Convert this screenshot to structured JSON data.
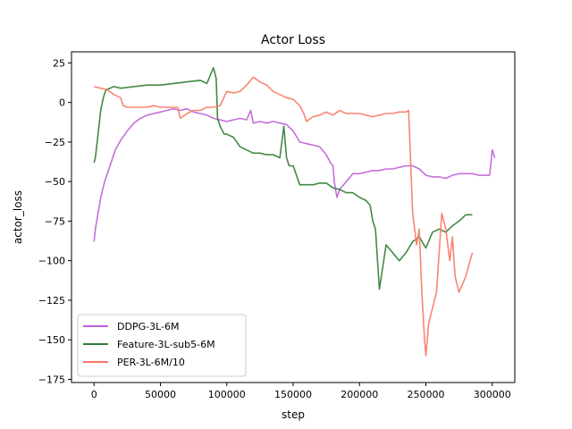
{
  "chart_data": {
    "type": "line",
    "title": "Actor Loss",
    "xlabel": "step",
    "ylabel": "actor_loss",
    "xlim": [
      -17000,
      317000
    ],
    "ylim": [
      -177,
      32
    ],
    "xticks": [
      0,
      50000,
      100000,
      150000,
      200000,
      250000,
      300000
    ],
    "xtick_labels": [
      "0",
      "50000",
      "100000",
      "150000",
      "200000",
      "250000",
      "300000"
    ],
    "yticks": [
      25,
      0,
      -25,
      -50,
      -75,
      -100,
      -125,
      -150,
      -175
    ],
    "ytick_labels": [
      "25",
      "0",
      "−25",
      "−50",
      "−75",
      "−100",
      "−125",
      "−150",
      "−175"
    ],
    "grid": false,
    "legend_position": "lower-left",
    "series": [
      {
        "name": "DDPG-3L-6M",
        "color": "#bf5fd6",
        "x": [
          0,
          1000,
          3000,
          5000,
          8000,
          12000,
          16000,
          20000,
          25000,
          30000,
          35000,
          40000,
          45000,
          50000,
          55000,
          60000,
          65000,
          70000,
          75000,
          80000,
          85000,
          90000,
          95000,
          100000,
          105000,
          110000,
          115000,
          118000,
          120000,
          125000,
          130000,
          135000,
          140000,
          145000,
          150000,
          155000,
          160000,
          165000,
          170000,
          175000,
          178000,
          180000,
          181000,
          183000,
          185000,
          190000,
          195000,
          200000,
          205000,
          210000,
          215000,
          220000,
          225000,
          230000,
          235000,
          240000,
          245000,
          250000,
          255000,
          260000,
          265000,
          270000,
          275000,
          280000,
          285000,
          290000,
          295000,
          298000,
          300000,
          302000
        ],
        "y": [
          -88,
          -80,
          -70,
          -60,
          -50,
          -40,
          -30,
          -24,
          -18,
          -13,
          -10,
          -8,
          -7,
          -6,
          -5,
          -4,
          -5,
          -4,
          -6,
          -7,
          -8,
          -10,
          -11,
          -12,
          -11,
          -10,
          -11,
          -5,
          -13,
          -12,
          -13,
          -12,
          -13,
          -14,
          -18,
          -25,
          -26,
          -27,
          -28,
          -33,
          -38,
          -40,
          -50,
          -60,
          -55,
          -50,
          -45,
          -45,
          -44,
          -43,
          -43,
          -42,
          -42,
          -41,
          -40,
          -40,
          -42,
          -46,
          -47,
          -47,
          -48,
          -46,
          -45,
          -45,
          -45,
          -46,
          -46,
          -46,
          -30,
          -35
        ]
      },
      {
        "name": "Feature-3L-sub5-6M",
        "color": "#2d7d32",
        "x": [
          0,
          1000,
          3000,
          5000,
          7000,
          9000,
          12000,
          15000,
          20000,
          30000,
          40000,
          50000,
          60000,
          70000,
          80000,
          85000,
          88000,
          90000,
          92000,
          93000,
          95000,
          98000,
          100000,
          105000,
          110000,
          115000,
          120000,
          125000,
          130000,
          135000,
          140000,
          143000,
          145000,
          147000,
          150000,
          155000,
          160000,
          165000,
          170000,
          175000,
          180000,
          185000,
          190000,
          195000,
          200000,
          205000,
          208000,
          210000,
          212000,
          215000,
          220000,
          225000,
          230000,
          235000,
          240000,
          245000,
          250000,
          255000,
          260000,
          265000,
          270000,
          275000,
          280000,
          285000
        ],
        "y": [
          -38,
          -35,
          -20,
          -5,
          3,
          8,
          9,
          10,
          9,
          10,
          11,
          11,
          12,
          13,
          14,
          12,
          18,
          22,
          15,
          -10,
          -15,
          -20,
          -20,
          -22,
          -28,
          -30,
          -32,
          -32,
          -33,
          -33,
          -35,
          -15,
          -35,
          -40,
          -40,
          -52,
          -52,
          -52,
          -51,
          -51,
          -54,
          -55,
          -57,
          -57,
          -60,
          -62,
          -65,
          -75,
          -80,
          -118,
          -90,
          -95,
          -100,
          -95,
          -88,
          -85,
          -92,
          -82,
          -80,
          -82,
          -78,
          -75,
          -71,
          -71
        ]
      },
      {
        "name": "PER-3L-6M/10",
        "color": "#fa7864",
        "x": [
          0,
          5000,
          10000,
          15000,
          20000,
          22000,
          25000,
          30000,
          35000,
          40000,
          45000,
          50000,
          55000,
          60000,
          63000,
          65000,
          70000,
          75000,
          80000,
          85000,
          90000,
          95000,
          100000,
          105000,
          110000,
          115000,
          120000,
          125000,
          130000,
          135000,
          140000,
          145000,
          150000,
          155000,
          158000,
          160000,
          165000,
          170000,
          175000,
          180000,
          185000,
          190000,
          195000,
          200000,
          205000,
          210000,
          215000,
          220000,
          225000,
          230000,
          235000,
          237000,
          240000,
          243000,
          245000,
          247000,
          249000,
          250000,
          252000,
          255000,
          258000,
          262000,
          265000,
          268000,
          270000,
          272000,
          275000,
          280000,
          285000
        ],
        "y": [
          10,
          9,
          8,
          5,
          3,
          -2,
          -3,
          -3,
          -3,
          -3,
          -2,
          -3,
          -3,
          -3,
          -3,
          -10,
          -7,
          -5,
          -5,
          -3,
          -3,
          -2,
          7,
          6,
          7,
          11,
          16,
          13,
          11,
          7,
          5,
          3,
          2,
          -2,
          -7,
          -12,
          -9,
          -8,
          -6,
          -8,
          -5,
          -7,
          -7,
          -7,
          -8,
          -9,
          -8,
          -7,
          -7,
          -6,
          -6,
          -5,
          -70,
          -90,
          -80,
          -120,
          -150,
          -160,
          -140,
          -130,
          -120,
          -70,
          -80,
          -100,
          -85,
          -110,
          -120,
          -110,
          -95
        ]
      }
    ]
  }
}
